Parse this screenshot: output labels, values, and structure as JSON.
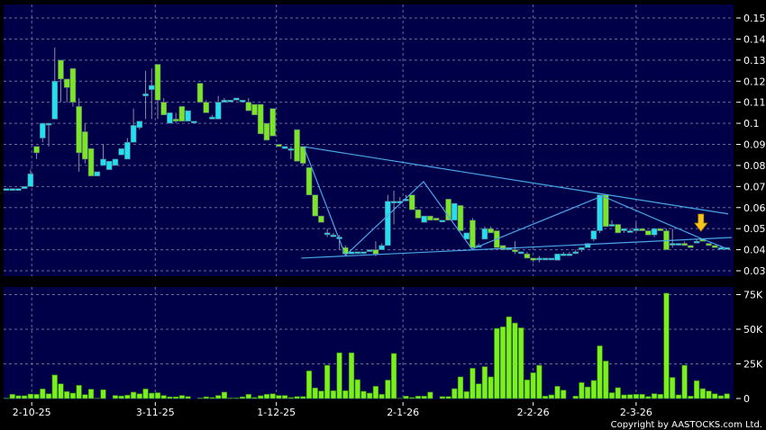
{
  "chart_data": [
    {
      "type": "candlestick",
      "panel": "price",
      "title": "",
      "ylim": [
        0.03,
        0.15
      ],
      "y_ticks": [
        "0.15",
        "0.14",
        "0.13",
        "0.12",
        "0.11",
        "0.1",
        "0.09",
        "0.08",
        "0.07",
        "0.06",
        "0.05",
        "0.04",
        "0.03"
      ],
      "y_tick_values": [
        0.15,
        0.14,
        0.13,
        0.12,
        0.11,
        0.1,
        0.09,
        0.08,
        0.07,
        0.06,
        0.05,
        0.04,
        0.03
      ],
      "axis_position": "right",
      "grid": true,
      "colors": {
        "background": "#000048",
        "up": "#22e0f0",
        "down": "#7be624",
        "grid": "#6a6a9a",
        "trendline": "#4aa6e8",
        "arrow": "#f5c518"
      },
      "candles_ohlc": [
        [
          0.069,
          0.069,
          0.069,
          0.069
        ],
        [
          0.069,
          0.069,
          0.069,
          0.069
        ],
        [
          0.069,
          0.069,
          0.069,
          0.069
        ],
        [
          0.069,
          0.07,
          0.069,
          0.07
        ],
        [
          0.07,
          0.078,
          0.07,
          0.076
        ],
        [
          0.089,
          0.089,
          0.083,
          0.086
        ],
        [
          0.093,
          0.1,
          0.091,
          0.1
        ],
        [
          0.1,
          0.1,
          0.089,
          0.1
        ],
        [
          0.102,
          0.136,
          0.102,
          0.12
        ],
        [
          0.13,
          0.13,
          0.11,
          0.121
        ],
        [
          0.121,
          0.121,
          0.11,
          0.117
        ],
        [
          0.126,
          0.126,
          0.108,
          0.11
        ],
        [
          0.108,
          0.112,
          0.077,
          0.086
        ],
        [
          0.096,
          0.1,
          0.081,
          0.083
        ],
        [
          0.088,
          0.088,
          0.075,
          0.075
        ],
        [
          0.075,
          0.077,
          0.075,
          0.077
        ],
        [
          0.08,
          0.09,
          0.08,
          0.083
        ],
        [
          0.078,
          0.082,
          0.078,
          0.082
        ],
        [
          0.08,
          0.083,
          0.08,
          0.083
        ],
        [
          0.085,
          0.088,
          0.085,
          0.088
        ],
        [
          0.083,
          0.093,
          0.083,
          0.091
        ],
        [
          0.091,
          0.107,
          0.091,
          0.099
        ],
        [
          0.098,
          0.101,
          0.097,
          0.101
        ],
        [
          0.113,
          0.125,
          0.102,
          0.114
        ],
        [
          0.116,
          0.126,
          0.102,
          0.118
        ],
        [
          0.128,
          0.128,
          0.102,
          0.111
        ],
        [
          0.11,
          0.112,
          0.104,
          0.104
        ],
        [
          0.1,
          0.105,
          0.1,
          0.105
        ],
        [
          0.102,
          0.105,
          0.1,
          0.101
        ],
        [
          0.108,
          0.108,
          0.101,
          0.101
        ],
        [
          0.101,
          0.106,
          0.101,
          0.106
        ],
        [
          0.101,
          0.101,
          0.101,
          0.101
        ],
        [
          0.119,
          0.119,
          0.11,
          0.11
        ],
        [
          0.11,
          0.111,
          0.105,
          0.105
        ],
        [
          0.102,
          0.104,
          0.102,
          0.103
        ],
        [
          0.102,
          0.113,
          0.102,
          0.11
        ],
        [
          0.11,
          0.112,
          0.11,
          0.111
        ],
        [
          0.111,
          0.111,
          0.111,
          0.111
        ],
        [
          0.111,
          0.112,
          0.111,
          0.112
        ],
        [
          0.111,
          0.111,
          0.11,
          0.111
        ],
        [
          0.11,
          0.112,
          0.106,
          0.106
        ],
        [
          0.109,
          0.109,
          0.104,
          0.104
        ],
        [
          0.109,
          0.109,
          0.095,
          0.095
        ],
        [
          0.1,
          0.1,
          0.092,
          0.092
        ],
        [
          0.107,
          0.107,
          0.094,
          0.094
        ],
        [
          0.09,
          0.09,
          0.089,
          0.089
        ],
        [
          0.088,
          0.089,
          0.088,
          0.089
        ],
        [
          0.088,
          0.089,
          0.083,
          0.088
        ],
        [
          0.097,
          0.097,
          0.082,
          0.082
        ],
        [
          0.089,
          0.089,
          0.08,
          0.081
        ],
        [
          0.079,
          0.079,
          0.066,
          0.066
        ],
        [
          0.066,
          0.066,
          0.056,
          0.056
        ],
        [
          0.056,
          0.056,
          0.053,
          0.053
        ],
        [
          0.048,
          0.05,
          0.046,
          0.048
        ],
        [
          0.047,
          0.048,
          0.047,
          0.047
        ],
        [
          0.046,
          0.047,
          0.04,
          0.046
        ],
        [
          0.041,
          0.042,
          0.038,
          0.038
        ],
        [
          0.038,
          0.039,
          0.038,
          0.039
        ],
        [
          0.039,
          0.039,
          0.039,
          0.039
        ],
        [
          0.039,
          0.039,
          0.039,
          0.039
        ],
        [
          0.04,
          0.04,
          0.039,
          0.04
        ],
        [
          0.04,
          0.044,
          0.037,
          0.038
        ],
        [
          0.04,
          0.043,
          0.04,
          0.042
        ],
        [
          0.042,
          0.066,
          0.042,
          0.063
        ],
        [
          0.063,
          0.068,
          0.052,
          0.063
        ],
        [
          0.063,
          0.065,
          0.062,
          0.063
        ],
        [
          0.064,
          0.066,
          0.063,
          0.064
        ],
        [
          0.066,
          0.066,
          0.059,
          0.059
        ],
        [
          0.059,
          0.059,
          0.055,
          0.055
        ],
        [
          0.053,
          0.056,
          0.053,
          0.056
        ],
        [
          0.056,
          0.056,
          0.054,
          0.054
        ],
        [
          0.055,
          0.055,
          0.054,
          0.054
        ],
        [
          0.054,
          0.054,
          0.054,
          0.054
        ],
        [
          0.064,
          0.064,
          0.054,
          0.054
        ],
        [
          0.054,
          0.062,
          0.054,
          0.062
        ],
        [
          0.061,
          0.061,
          0.049,
          0.049
        ],
        [
          0.045,
          0.048,
          0.045,
          0.048
        ],
        [
          0.054,
          0.055,
          0.041,
          0.041
        ],
        [
          0.042,
          0.043,
          0.042,
          0.042
        ],
        [
          0.045,
          0.051,
          0.045,
          0.05
        ],
        [
          0.05,
          0.051,
          0.048,
          0.048
        ],
        [
          0.049,
          0.049,
          0.041,
          0.041
        ],
        [
          0.042,
          0.042,
          0.04,
          0.04
        ],
        [
          0.04,
          0.041,
          0.04,
          0.041
        ],
        [
          0.04,
          0.044,
          0.038,
          0.039
        ],
        [
          0.039,
          0.039,
          0.038,
          0.039
        ],
        [
          0.038,
          0.039,
          0.036,
          0.036
        ],
        [
          0.036,
          0.036,
          0.034,
          0.035
        ],
        [
          0.036,
          0.037,
          0.034,
          0.036
        ],
        [
          0.036,
          0.036,
          0.035,
          0.036
        ],
        [
          0.036,
          0.036,
          0.035,
          0.036
        ],
        [
          0.035,
          0.038,
          0.035,
          0.038
        ],
        [
          0.038,
          0.039,
          0.038,
          0.038
        ],
        [
          0.038,
          0.039,
          0.038,
          0.038
        ],
        [
          0.039,
          0.04,
          0.038,
          0.039
        ],
        [
          0.04,
          0.041,
          0.039,
          0.041
        ],
        [
          0.041,
          0.043,
          0.041,
          0.043
        ],
        [
          0.045,
          0.049,
          0.044,
          0.049
        ],
        [
          0.049,
          0.066,
          0.048,
          0.066
        ],
        [
          0.066,
          0.066,
          0.051,
          0.051
        ],
        [
          0.052,
          0.054,
          0.051,
          0.052
        ],
        [
          0.052,
          0.052,
          0.048,
          0.048
        ],
        [
          0.049,
          0.05,
          0.048,
          0.05
        ],
        [
          0.049,
          0.05,
          0.049,
          0.049
        ],
        [
          0.049,
          0.053,
          0.049,
          0.05
        ],
        [
          0.05,
          0.05,
          0.049,
          0.049
        ],
        [
          0.049,
          0.049,
          0.047,
          0.047
        ],
        [
          0.047,
          0.05,
          0.046,
          0.05
        ],
        [
          0.05,
          0.05,
          0.049,
          0.049
        ],
        [
          0.049,
          0.05,
          0.04,
          0.04
        ],
        [
          0.043,
          0.05,
          0.041,
          0.043
        ],
        [
          0.043,
          0.043,
          0.042,
          0.043
        ],
        [
          0.043,
          0.044,
          0.042,
          0.042
        ],
        [
          0.042,
          0.042,
          0.041,
          0.041
        ],
        [
          0.044,
          0.045,
          0.043,
          0.044
        ],
        [
          0.045,
          0.045,
          0.044,
          0.044
        ],
        [
          0.043,
          0.043,
          0.042,
          0.042
        ],
        [
          0.042,
          0.042,
          0.041,
          0.041
        ],
        [
          0.041,
          0.042,
          0.041,
          0.041
        ],
        [
          0.041,
          0.041,
          0.041,
          0.041
        ]
      ],
      "trendlines": [
        {
          "from": [
            49.1,
            0.0889
          ],
          "to": [
            119.2,
            0.057
          ]
        },
        {
          "from": [
            48.7,
            0.036
          ],
          "to": [
            119.8,
            0.0458
          ]
        }
      ],
      "zigzag": [
        [
          49.1,
          0.0889
        ],
        [
          56,
          0.0373
        ],
        [
          68.9,
          0.0723
        ],
        [
          76.9,
          0.0403
        ],
        [
          98.4,
          0.0655
        ],
        [
          115,
          0.045
        ],
        [
          118.8,
          0.0407
        ]
      ],
      "arrow_marker": {
        "index": 115,
        "direction": "down"
      }
    },
    {
      "type": "bar",
      "panel": "volume",
      "ylim": [
        0,
        80
      ],
      "y_ticks": [
        "75K",
        "50K",
        "25K",
        "0"
      ],
      "y_tick_values": [
        75,
        50,
        25,
        0
      ],
      "unit": "K",
      "grid": true,
      "values": [
        0.3,
        3,
        2,
        2,
        3.2,
        3,
        6.9,
        3.4,
        17,
        10.6,
        5,
        3.9,
        9.5,
        2.8,
        6.7,
        0.2,
        6.3,
        0,
        2.2,
        1.8,
        2.4,
        4.6,
        3.4,
        6.9,
        3.9,
        4.2,
        2.2,
        1.2,
        1.2,
        2.2,
        1.4,
        0,
        0.4,
        1.2,
        0.7,
        2.2,
        4.6,
        0.4,
        0.4,
        1.2,
        3,
        0.7,
        2,
        3,
        3.4,
        2.2,
        2.2,
        0.7,
        1.4,
        1.4,
        19.9,
        7.6,
        5.4,
        24,
        5.6,
        33,
        5.6,
        33,
        13.6,
        5.2,
        3.9,
        8.8,
        3,
        13.3,
        32.5,
        0.2,
        1.7,
        0.7,
        1.7,
        1.7,
        4.6,
        0,
        1.4,
        1.4,
        7.1,
        15.6,
        5,
        21.8,
        10.6,
        23,
        15.6,
        50.6,
        51.7,
        59,
        54.5,
        51,
        13.4,
        18.6,
        24,
        1.7,
        2.6,
        8.8,
        6,
        0,
        1.7,
        11.5,
        8.3,
        13,
        38,
        27,
        4.2,
        7.8,
        2.6,
        2.8,
        3,
        3,
        1.4,
        3.5,
        3,
        76,
        15.2,
        2.6,
        24,
        1.7,
        12.8,
        7.1,
        5.4,
        3.4,
        2,
        3.4
      ],
      "colors": {
        "bar": "#7cf01c",
        "bar_edge": "#3a8a10"
      }
    }
  ],
  "x_axis": {
    "labels": [
      "2-10-25",
      "3-11-25",
      "1-12-25",
      "2-1-26",
      "2-2-26",
      "2-3-26"
    ],
    "label_indices": [
      4.2,
      24.6,
      44.6,
      65.5,
      87,
      104
    ]
  },
  "copyright": "Copyright by AASTOCKS.com Ltd."
}
